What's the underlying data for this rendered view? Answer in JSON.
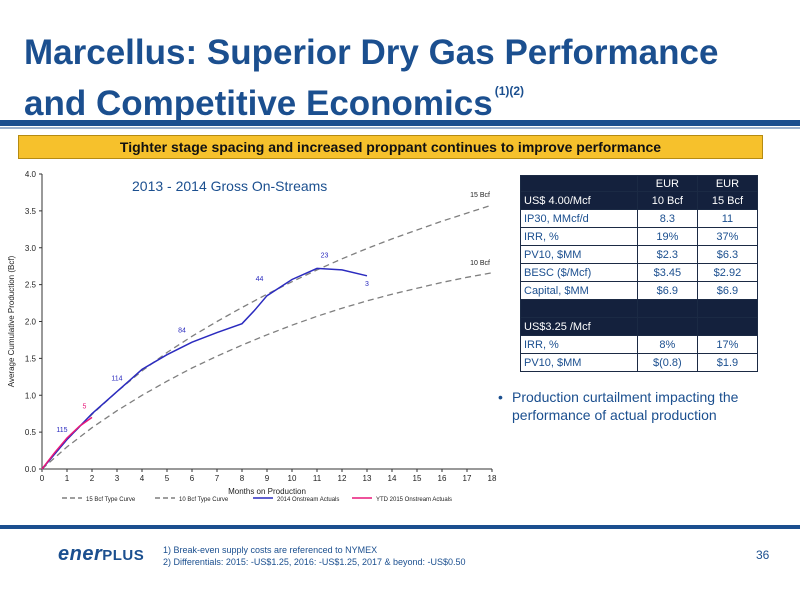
{
  "slide": {
    "title_line1": "Marcellus: Superior Dry Gas Performance",
    "title_line2": "and Competitive Economics",
    "title_sup": "(1)(2)",
    "banner": "Tighter stage spacing and increased proppant continues to improve performance",
    "bullet": "Production curtailment impacting the performance of actual production",
    "footnote1": "1)  Break-even supply costs are referenced to NYMEX",
    "footnote2": "2)  Differentials:  2015: -US$1.25, 2016: -US$1.25, 2017 & beyond: -US$0.50",
    "page_number": "36",
    "logo_text": "ener",
    "logo_plus": "PLUS",
    "colors": {
      "brand_blue": "#1b4f8f",
      "banner_yellow": "#f6c12c",
      "table_dark": "#14213d"
    }
  },
  "table": {
    "header_row": [
      "",
      "EUR",
      "EUR"
    ],
    "price_row": [
      "US$ 4.00/Mcf",
      "10 Bcf",
      "15 Bcf"
    ],
    "rows_400": [
      [
        "IP30, MMcf/d",
        "8.3",
        "11"
      ],
      [
        "IRR, %",
        "19%",
        "37%"
      ],
      [
        "PV10, $MM",
        "$2.3",
        "$6.3"
      ],
      [
        "BESC ($/Mcf)",
        "$3.45",
        "$2.92"
      ],
      [
        "Capital, $MM",
        "$6.9",
        "$6.9"
      ]
    ],
    "price_row_325": [
      "US$3.25 /Mcf",
      "",
      ""
    ],
    "rows_325": [
      [
        "IRR, %",
        "8%",
        "17%"
      ],
      [
        "PV10, $MM",
        "$(0.8)",
        "$1.9"
      ]
    ]
  },
  "chart_data": {
    "type": "line",
    "title": "2013 - 2014 Gross On-Streams",
    "xlabel": "Months on Production",
    "ylabel": "Average Cumulative Production (Bcf)",
    "xlim": [
      0,
      18
    ],
    "ylim": [
      0,
      4.0
    ],
    "x_ticks": [
      "0",
      "1",
      "2",
      "3",
      "4",
      "5",
      "6",
      "7",
      "8",
      "9",
      "10",
      "11",
      "12",
      "13",
      "14",
      "15",
      "16",
      "17",
      "18"
    ],
    "y_ticks": [
      "0.0",
      "0.5",
      "1.0",
      "1.5",
      "2.0",
      "2.5",
      "3.0",
      "3.5",
      "4.0"
    ],
    "legend_position": "bottom",
    "series": [
      {
        "name": "15 Bcf Type Curve",
        "color": "#7f7f7f",
        "style": "dashed",
        "end_label": "15 Bcf",
        "x": [
          0,
          1,
          2,
          3,
          4,
          5,
          6,
          7,
          8,
          9,
          10,
          11,
          12,
          13,
          14,
          15,
          16,
          17,
          18
        ],
        "y": [
          0,
          0.4,
          0.74,
          1.05,
          1.33,
          1.58,
          1.8,
          2.0,
          2.19,
          2.37,
          2.54,
          2.7,
          2.85,
          2.99,
          3.12,
          3.24,
          3.36,
          3.47,
          3.58
        ]
      },
      {
        "name": "10 Bcf Type Curve",
        "color": "#7f7f7f",
        "style": "dashed",
        "end_label": "10 Bcf",
        "x": [
          0,
          1,
          2,
          3,
          4,
          5,
          6,
          7,
          8,
          9,
          10,
          11,
          12,
          13,
          14,
          15,
          16,
          17,
          18
        ],
        "y": [
          0,
          0.3,
          0.56,
          0.79,
          1.0,
          1.19,
          1.37,
          1.53,
          1.68,
          1.82,
          1.95,
          2.07,
          2.18,
          2.28,
          2.37,
          2.45,
          2.53,
          2.6,
          2.66
        ]
      },
      {
        "name": "2014 Onstream Actuals",
        "color": "#2b2bbf",
        "style": "solid",
        "x": [
          0,
          1,
          2,
          3,
          4,
          5,
          6,
          7,
          8,
          8.5,
          9,
          10,
          11,
          12,
          13
        ],
        "y": [
          0,
          0.4,
          0.75,
          1.05,
          1.35,
          1.55,
          1.72,
          1.85,
          1.97,
          2.15,
          2.35,
          2.57,
          2.72,
          2.7,
          2.62
        ]
      },
      {
        "name": "YTD 2015 Onstream Actuals",
        "color": "#e8187a",
        "style": "solid",
        "x": [
          0,
          0.5,
          1,
          1.5,
          2
        ],
        "y": [
          0,
          0.22,
          0.42,
          0.58,
          0.7
        ]
      }
    ],
    "annotations": [
      {
        "text": "115",
        "x": 0.8,
        "y": 0.5,
        "color": "#2b2bbf"
      },
      {
        "text": "5",
        "x": 1.7,
        "y": 0.82,
        "color": "#e8187a"
      },
      {
        "text": "114",
        "x": 3.0,
        "y": 1.2,
        "color": "#2b2bbf"
      },
      {
        "text": "84",
        "x": 5.6,
        "y": 1.85,
        "color": "#2b2bbf"
      },
      {
        "text": "44",
        "x": 8.7,
        "y": 2.55,
        "color": "#2b2bbf"
      },
      {
        "text": "23",
        "x": 11.3,
        "y": 2.87,
        "color": "#2b2bbf"
      },
      {
        "text": "3",
        "x": 13.0,
        "y": 2.48,
        "color": "#2b2bbf"
      }
    ]
  }
}
